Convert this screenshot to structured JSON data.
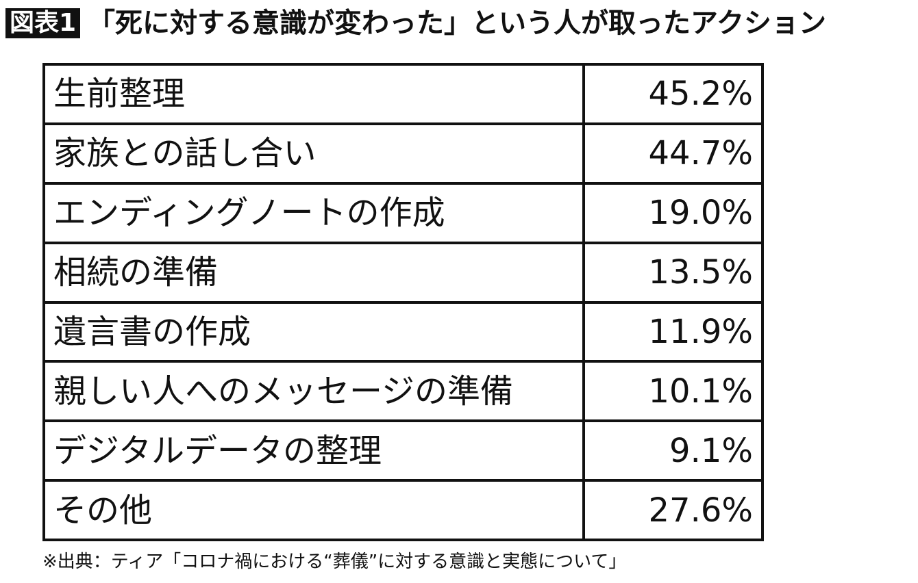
{
  "header": {
    "label": "図表1",
    "title": "「死に対する意識が変わった」という人が取ったアクション"
  },
  "table": {
    "rows": [
      [
        "生前整理",
        "45.2%"
      ],
      [
        "家族との話し合い",
        "44.7%"
      ],
      [
        "エンディングノートの作成",
        "19.0%"
      ],
      [
        "相続の準備",
        "13.5%"
      ],
      [
        "遺言書の作成",
        "11.9%"
      ],
      [
        "親しい人へのメッセージの準備",
        "10.1%"
      ],
      [
        "デジタルデータの整理",
        "9.1%"
      ],
      [
        "その他",
        "27.6%"
      ]
    ]
  },
  "source": "※出典：ティア「コロナ禍における“葬儀”に対する意識と実態について」"
}
